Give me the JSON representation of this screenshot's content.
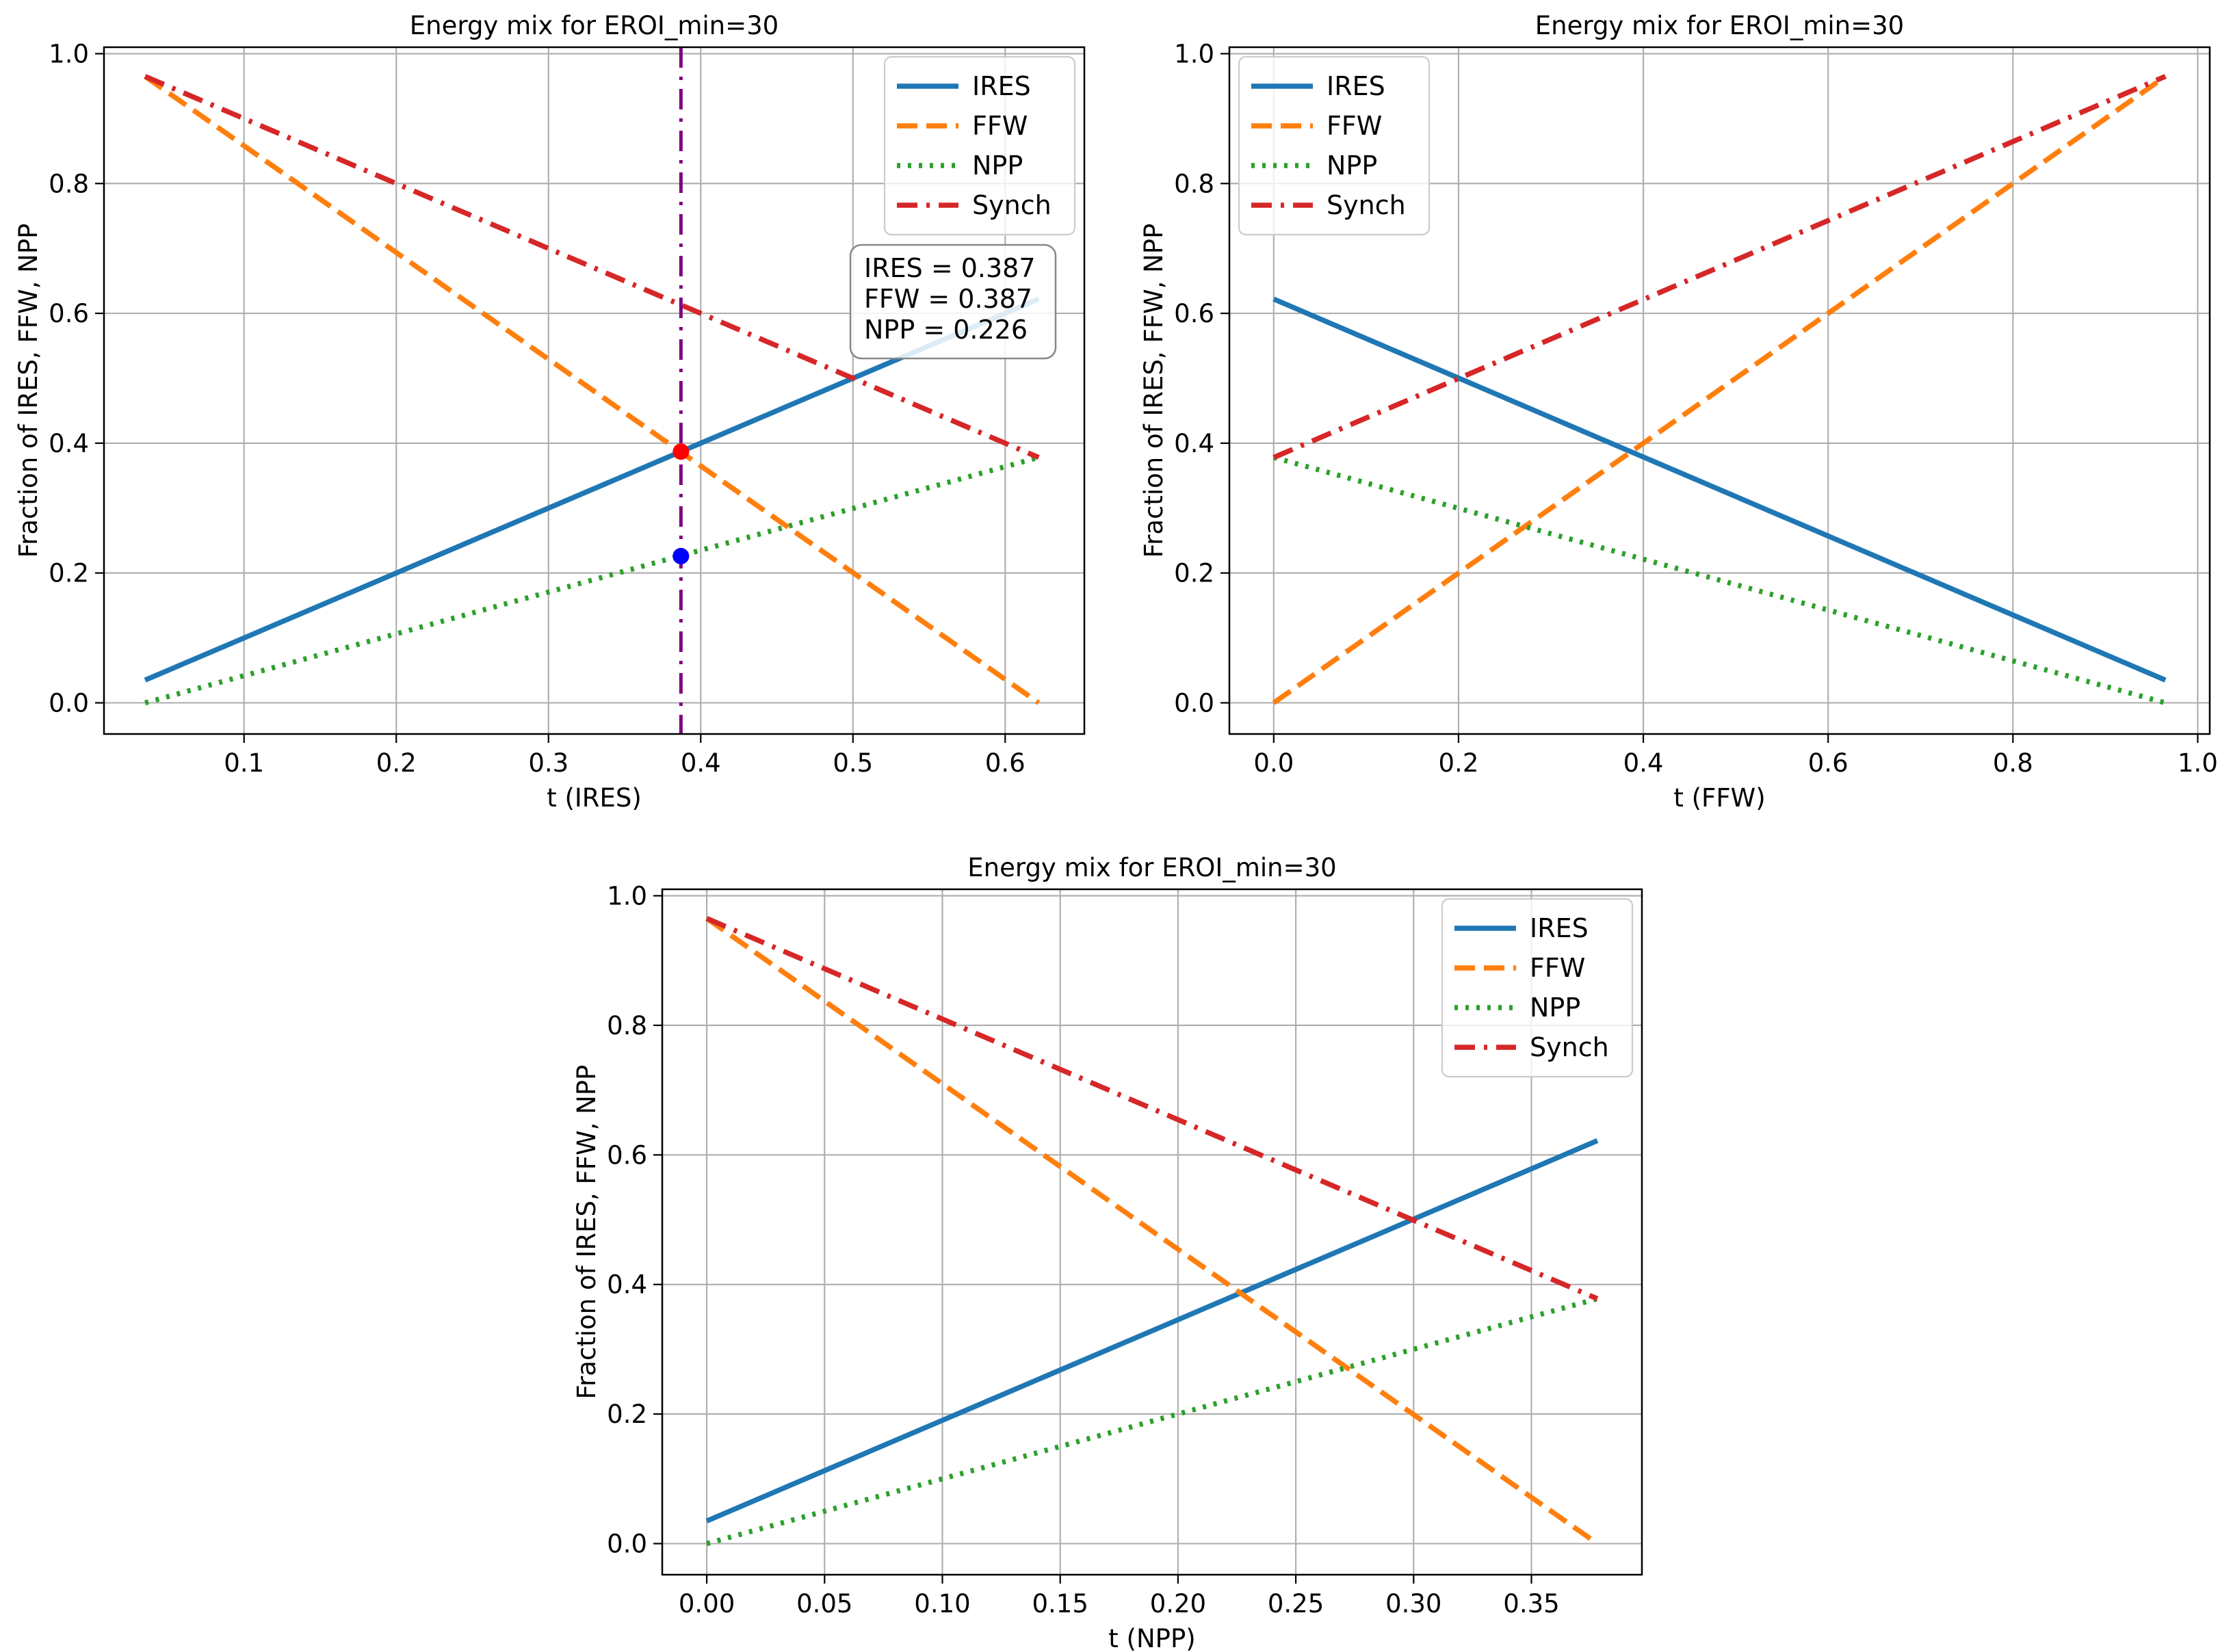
{
  "chart_data": [
    {
      "type": "line",
      "title": "Energy mix for EROI_min=30",
      "xlabel": "t (IRES)",
      "ylabel": "Fraction of IRES, FFW, NPP",
      "xlim": [
        0.008,
        0.652
      ],
      "ylim": [
        -0.048,
        1.01
      ],
      "xticks": [
        0.1,
        0.2,
        0.3,
        0.4,
        0.5,
        0.6
      ],
      "xtick_labels": [
        "0.1",
        "0.2",
        "0.3",
        "0.4",
        "0.5",
        "0.6"
      ],
      "yticks": [
        0.0,
        0.2,
        0.4,
        0.6,
        0.8,
        1.0
      ],
      "ytick_labels": [
        "0.0",
        "0.2",
        "0.4",
        "0.6",
        "0.8",
        "1.0"
      ],
      "grid": true,
      "legend_position": "upper-right",
      "series": [
        {
          "name": "IRES",
          "style": "solid",
          "color": "#1f77b4",
          "x": [
            0.035,
            0.622
          ],
          "y": [
            0.035,
            0.622
          ]
        },
        {
          "name": "FFW",
          "style": "dashed",
          "color": "#ff7f0e",
          "x": [
            0.035,
            0.622
          ],
          "y": [
            0.965,
            0.0
          ]
        },
        {
          "name": "NPP",
          "style": "dotted",
          "color": "#2ca02c",
          "x": [
            0.035,
            0.622
          ],
          "y": [
            0.0,
            0.378
          ]
        },
        {
          "name": "Synch",
          "style": "dashdot",
          "color": "#d62728",
          "x": [
            0.035,
            0.622
          ],
          "y": [
            0.965,
            0.378
          ]
        }
      ],
      "vline": {
        "x": 0.387,
        "color": "#800080",
        "style": "dashdot"
      },
      "markers": [
        {
          "x": 0.387,
          "y": 0.387,
          "color": "#ff0000"
        },
        {
          "x": 0.387,
          "y": 0.226,
          "color": "#0000ff"
        }
      ],
      "annotation": {
        "lines": [
          "IRES = 0.387",
          "FFW = 0.387",
          "NPP = 0.226"
        ],
        "position": "upper-right"
      }
    },
    {
      "type": "line",
      "title": "Energy mix for EROI_min=30",
      "xlabel": "t (FFW)",
      "ylabel": "Fraction of IRES, FFW, NPP",
      "xlim": [
        -0.048,
        1.013
      ],
      "ylim": [
        -0.048,
        1.01
      ],
      "xticks": [
        0.0,
        0.2,
        0.4,
        0.6,
        0.8,
        1.0
      ],
      "xtick_labels": [
        "0.0",
        "0.2",
        "0.4",
        "0.6",
        "0.8",
        "1.0"
      ],
      "yticks": [
        0.0,
        0.2,
        0.4,
        0.6,
        0.8,
        1.0
      ],
      "ytick_labels": [
        "0.0",
        "0.2",
        "0.4",
        "0.6",
        "0.8",
        "1.0"
      ],
      "grid": true,
      "legend_position": "upper-left",
      "series": [
        {
          "name": "IRES",
          "style": "solid",
          "color": "#1f77b4",
          "x": [
            0.0,
            0.965
          ],
          "y": [
            0.622,
            0.035
          ]
        },
        {
          "name": "FFW",
          "style": "dashed",
          "color": "#ff7f0e",
          "x": [
            0.0,
            0.965
          ],
          "y": [
            0.0,
            0.965
          ]
        },
        {
          "name": "NPP",
          "style": "dotted",
          "color": "#2ca02c",
          "x": [
            0.0,
            0.965
          ],
          "y": [
            0.378,
            0.0
          ]
        },
        {
          "name": "Synch",
          "style": "dashdot",
          "color": "#d62728",
          "x": [
            0.0,
            0.965
          ],
          "y": [
            0.378,
            0.965
          ]
        }
      ]
    },
    {
      "type": "line",
      "title": "Energy mix for EROI_min=30",
      "xlabel": "t (NPP)",
      "ylabel": "Fraction of IRES, FFW, NPP",
      "xlim": [
        -0.0189,
        0.3969
      ],
      "ylim": [
        -0.048,
        1.01
      ],
      "xticks": [
        0.0,
        0.05,
        0.1,
        0.15,
        0.2,
        0.25,
        0.3,
        0.35
      ],
      "xtick_labels": [
        "0.00",
        "0.05",
        "0.10",
        "0.15",
        "0.20",
        "0.25",
        "0.30",
        "0.35"
      ],
      "yticks": [
        0.0,
        0.2,
        0.4,
        0.6,
        0.8,
        1.0
      ],
      "ytick_labels": [
        "0.0",
        "0.2",
        "0.4",
        "0.6",
        "0.8",
        "1.0"
      ],
      "grid": true,
      "legend_position": "upper-right",
      "series": [
        {
          "name": "IRES",
          "style": "solid",
          "color": "#1f77b4",
          "x": [
            0.0,
            0.378
          ],
          "y": [
            0.035,
            0.622
          ]
        },
        {
          "name": "FFW",
          "style": "dashed",
          "color": "#ff7f0e",
          "x": [
            0.0,
            0.378
          ],
          "y": [
            0.965,
            0.0
          ]
        },
        {
          "name": "NPP",
          "style": "dotted",
          "color": "#2ca02c",
          "x": [
            0.0,
            0.378
          ],
          "y": [
            0.0,
            0.378
          ]
        },
        {
          "name": "Synch",
          "style": "dashdot",
          "color": "#d62728",
          "x": [
            0.0,
            0.378
          ],
          "y": [
            0.965,
            0.378
          ]
        }
      ]
    }
  ]
}
